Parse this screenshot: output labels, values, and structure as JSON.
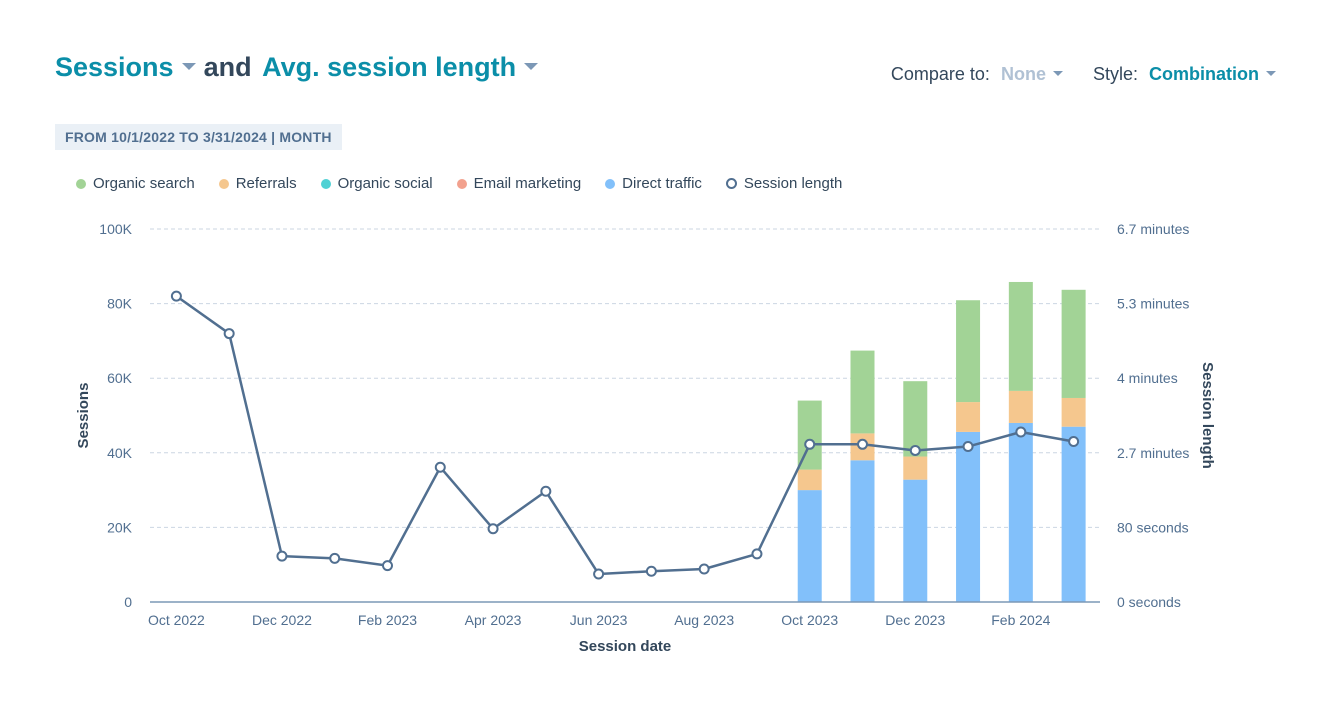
{
  "header": {
    "metric1": "Sessions",
    "joiner": "and",
    "metric2": "Avg. session length"
  },
  "controls": {
    "compare_label": "Compare to:",
    "compare_value": "None",
    "style_label": "Style:",
    "style_value": "Combination"
  },
  "date_range": "FROM 10/1/2022 TO 3/31/2024 | MONTH",
  "colors": {
    "organic_search": "#a2d396",
    "referrals": "#f5c78e",
    "organic_social": "#4fd1d4",
    "email_marketing": "#f2a18e",
    "direct_traffic": "#82c0fa",
    "session_length": "#516f90",
    "accent": "#0b8ea8"
  },
  "chart_data": {
    "type": "bar",
    "stacked": true,
    "combination": "bar+line",
    "x": [
      "Oct 2022",
      "Nov 2022",
      "Dec 2022",
      "Jan 2023",
      "Feb 2023",
      "Mar 2023",
      "Apr 2023",
      "May 2023",
      "Jun 2023",
      "Jul 2023",
      "Aug 2023",
      "Sep 2023",
      "Oct 2023",
      "Nov 2023",
      "Dec 2023",
      "Jan 2024",
      "Feb 2024",
      "Mar 2024"
    ],
    "x_tick_labels": [
      "Oct 2022",
      "Dec 2022",
      "Feb 2023",
      "Apr 2023",
      "Jun 2023",
      "Aug 2023",
      "Oct 2023",
      "Dec 2023",
      "Feb 2024"
    ],
    "series": [
      {
        "name": "Direct traffic",
        "axis": "left",
        "values": [
          0,
          0,
          0,
          0,
          0,
          0,
          0,
          0,
          0,
          0,
          0,
          0,
          30000,
          38000,
          32800,
          45600,
          48000,
          47000
        ]
      },
      {
        "name": "Email marketing",
        "axis": "left",
        "values": [
          0,
          0,
          0,
          0,
          0,
          0,
          0,
          0,
          0,
          0,
          0,
          0,
          0,
          0,
          0,
          0,
          0,
          0
        ]
      },
      {
        "name": "Organic social",
        "axis": "left",
        "values": [
          0,
          0,
          0,
          0,
          0,
          0,
          0,
          0,
          0,
          0,
          0,
          0,
          0,
          0,
          0,
          0,
          0,
          0
        ]
      },
      {
        "name": "Referrals",
        "axis": "left",
        "values": [
          0,
          0,
          0,
          0,
          0,
          0,
          0,
          0,
          0,
          0,
          0,
          0,
          5500,
          7200,
          6200,
          8000,
          8600,
          7700
        ]
      },
      {
        "name": "Organic search",
        "axis": "left",
        "values": [
          0,
          0,
          0,
          0,
          0,
          0,
          0,
          0,
          0,
          0,
          0,
          0,
          18500,
          22200,
          20200,
          27300,
          29200,
          29000
        ]
      },
      {
        "name": "Session length",
        "axis": "right",
        "type": "line",
        "unit": "minutes",
        "values": [
          5.47,
          4.8,
          0.82,
          0.78,
          0.65,
          2.41,
          1.31,
          1.98,
          0.5,
          0.55,
          0.59,
          0.86,
          2.82,
          2.82,
          2.71,
          2.78,
          3.04,
          2.87
        ]
      }
    ],
    "xlabel": "Session date",
    "ylabel": "Sessions",
    "y2label": "Session length",
    "ylim": [
      0,
      100000
    ],
    "y_ticks": [
      0,
      20000,
      40000,
      60000,
      80000,
      100000
    ],
    "y_tick_labels": [
      "0",
      "20K",
      "40K",
      "60K",
      "80K",
      "100K"
    ],
    "y2lim": [
      0,
      6.67
    ],
    "y2_tick_labels": [
      "0 seconds",
      "80 seconds",
      "2.7 minutes",
      "4 minutes",
      "5.3 minutes",
      "6.7 minutes"
    ],
    "grid": true,
    "legend_position": "top-left",
    "legend": [
      "Organic search",
      "Referrals",
      "Organic social",
      "Email marketing",
      "Direct traffic",
      "Session length"
    ]
  }
}
